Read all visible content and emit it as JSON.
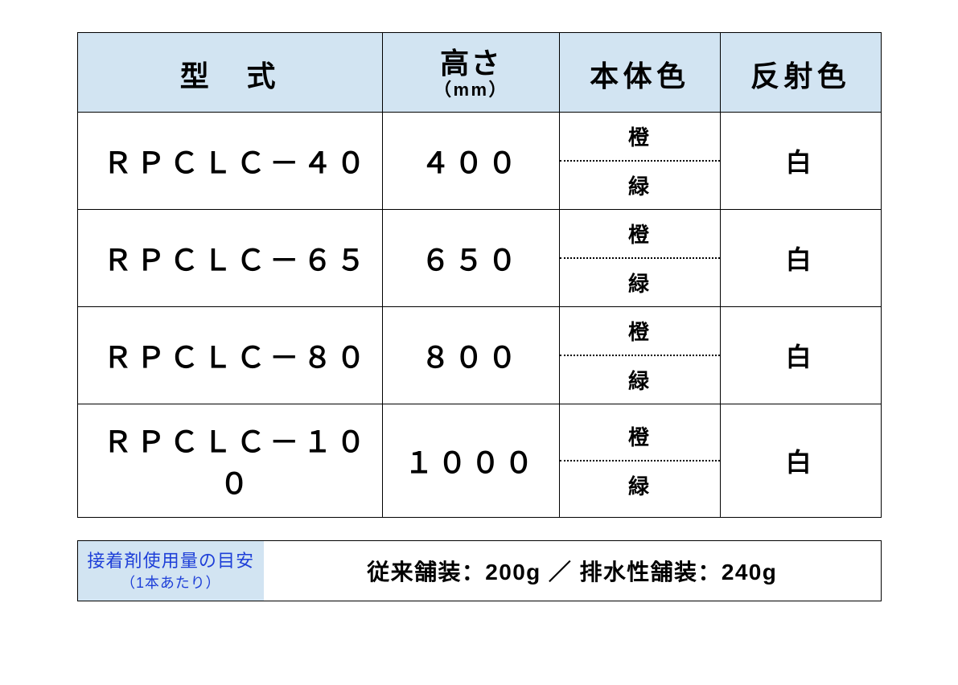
{
  "colors": {
    "header_bg": "#d2e4f2",
    "border": "#000000",
    "page_bg": "#ffffff",
    "text": "#000000",
    "footer_left_text": "#1e3fd8",
    "footer_left_bg": "#d2e4f2"
  },
  "table": {
    "headers": {
      "model": "型　式",
      "height_top": "高さ",
      "height_sub": "（mm）",
      "body_color": "本体色",
      "reflect_color": "反射色"
    },
    "rows": [
      {
        "model": "ＲＰＣＬＣ－４０",
        "height": "４００",
        "body_top": "橙",
        "body_bottom": "緑",
        "reflect": "白"
      },
      {
        "model": "ＲＰＣＬＣ－６５",
        "height": "６５０",
        "body_top": "橙",
        "body_bottom": "緑",
        "reflect": "白"
      },
      {
        "model": "ＲＰＣＬＣ－８０",
        "height": "８００",
        "body_top": "橙",
        "body_bottom": "緑",
        "reflect": "白"
      },
      {
        "model": "ＲＰＣＬＣ－１００",
        "height": "１０００",
        "body_top": "橙",
        "body_bottom": "緑",
        "reflect": "白"
      }
    ]
  },
  "footer": {
    "left_top": "接着剤使用量の目安",
    "left_sub": "（1本あたり）",
    "right": "従来舗装：200g ／ 排水性舗装：240g"
  }
}
